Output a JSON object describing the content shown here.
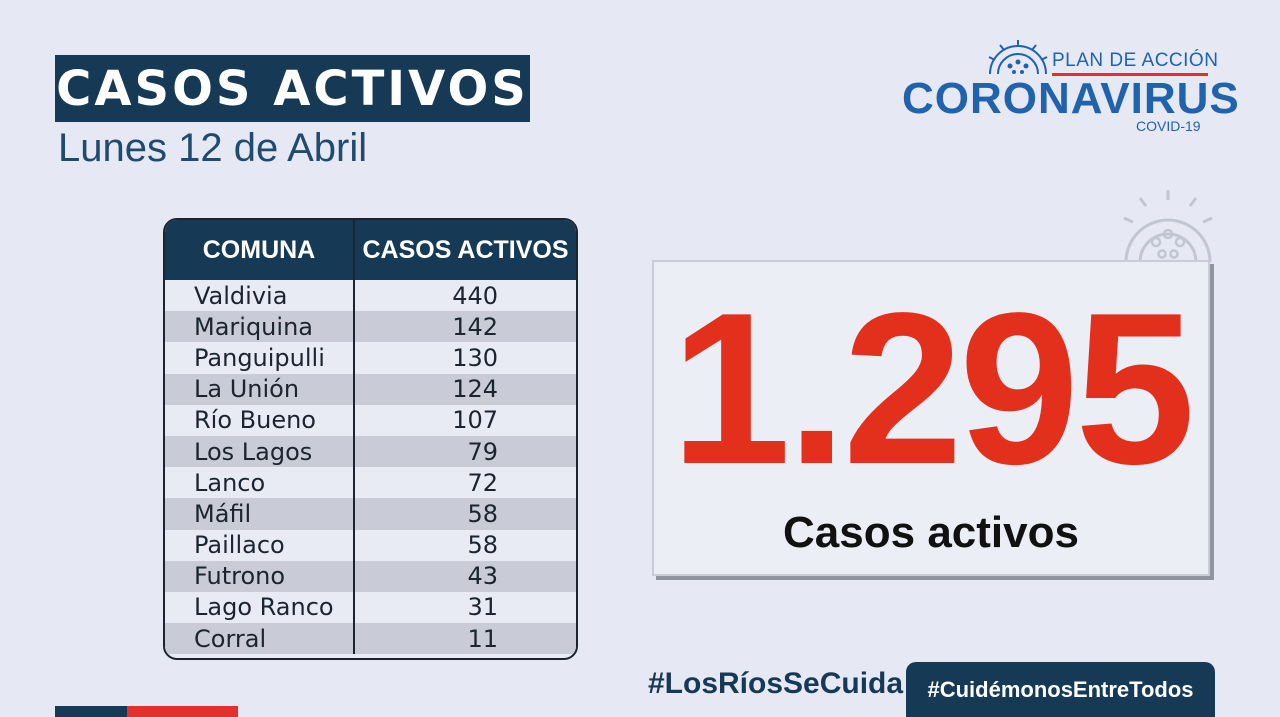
{
  "header": {
    "title": "CASOS ACTIVOS",
    "date": "Lunes 12 de Abril"
  },
  "logo": {
    "plan": "PLAN DE ACCIÓN",
    "main": "CORONAVIRUS",
    "sub": "COVID-19",
    "icon": "coronavirus-icon"
  },
  "table": {
    "headers": [
      "COMUNA",
      "CASOS ACTIVOS"
    ],
    "rows": [
      {
        "comuna": "Valdivia",
        "casos": "440"
      },
      {
        "comuna": "Mariquina",
        "casos": "142"
      },
      {
        "comuna": "Panguipulli",
        "casos": "130"
      },
      {
        "comuna": "La Unión",
        "casos": "124"
      },
      {
        "comuna": "Río Bueno",
        "casos": "107"
      },
      {
        "comuna": "Los Lagos",
        "casos": "79"
      },
      {
        "comuna": "Lanco",
        "casos": "72"
      },
      {
        "comuna": "Máfil",
        "casos": "58"
      },
      {
        "comuna": "Paillaco",
        "casos": "58"
      },
      {
        "comuna": "Futrono",
        "casos": "43"
      },
      {
        "comuna": "Lago Ranco",
        "casos": "31"
      },
      {
        "comuna": "Corral",
        "casos": "11"
      }
    ]
  },
  "total": {
    "value": "1.295",
    "label": "Casos activos"
  },
  "hashtags": {
    "left": "#LosRíosSeCuida",
    "right": "#CuidémonosEntreTodos"
  },
  "colors": {
    "navy": "#163a55",
    "red": "#e3301c",
    "logo_blue": "#1f63ad",
    "background": "#e6e8f3"
  }
}
